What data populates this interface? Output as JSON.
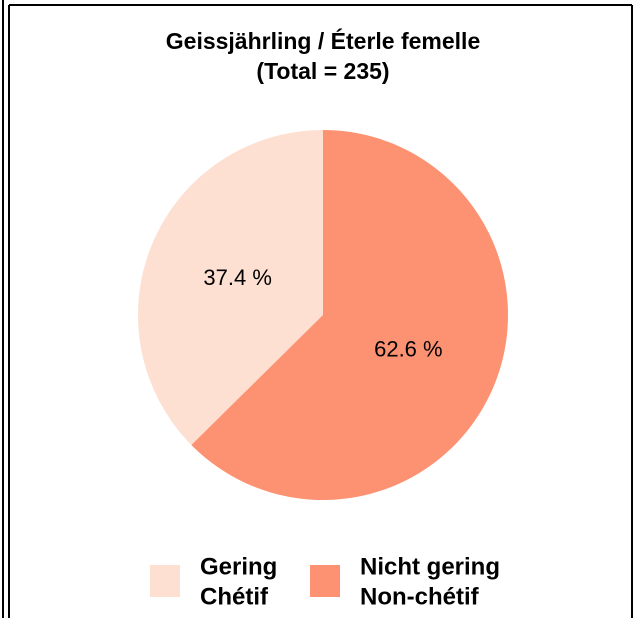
{
  "chart_data": {
    "type": "pie",
    "title": "Geissjährling / Éterle femelle",
    "subtitle": "(Total = 235)",
    "categories": [
      [
        "Gering",
        "Chétif"
      ],
      [
        "Nicht gering",
        "Non-chétif"
      ]
    ],
    "values": [
      37.4,
      62.6
    ],
    "value_labels": [
      "37.4 %",
      "62.6 %"
    ],
    "colors": [
      "#fde0d2",
      "#fc9272"
    ],
    "start_angle": 0,
    "direction": "counterclockwise"
  }
}
